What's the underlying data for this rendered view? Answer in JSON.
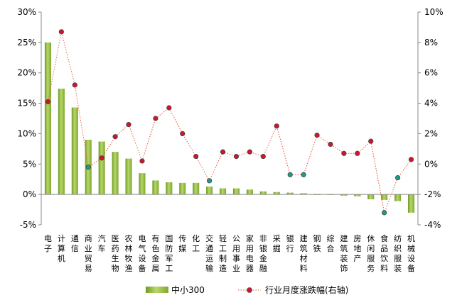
{
  "chart_data": {
    "type": "bar",
    "categories": [
      "电子",
      "计算机",
      "通信",
      "商业贸易",
      "汽车",
      "医药生物",
      "农林牧渔",
      "电气设备",
      "有色金属",
      "国防军工",
      "传媒",
      "化工",
      "交通运输",
      "轻工制造",
      "公用事业",
      "家用电器",
      "非银金融",
      "采掘",
      "银行",
      "建筑材料",
      "钢铁",
      "综合",
      "建筑装饰",
      "房地产",
      "休闲服务",
      "食品饮料",
      "纺织服装",
      "机械设备"
    ],
    "series": [
      {
        "name": "中小300",
        "type": "bar",
        "axis": "left",
        "color": "#8db83a",
        "values": [
          25.0,
          17.4,
          14.3,
          9.0,
          8.7,
          7.0,
          5.9,
          3.5,
          2.3,
          2.0,
          1.9,
          1.9,
          1.3,
          1.0,
          1.0,
          0.8,
          0.5,
          0.4,
          0.3,
          0.2,
          -0.1,
          0.0,
          -0.2,
          -0.3,
          -0.8,
          -0.9,
          -1.1,
          -3.0
        ]
      },
      {
        "name": "行业月度涨跌幅(右轴)",
        "type": "line",
        "axis": "right",
        "color": "#e05a3a",
        "values": [
          4.1,
          8.7,
          5.2,
          -0.2,
          0.4,
          1.8,
          2.6,
          0.2,
          3.0,
          3.7,
          2.0,
          0.5,
          -1.1,
          0.8,
          0.5,
          0.8,
          0.5,
          2.5,
          -0.7,
          -0.7,
          1.9,
          1.3,
          0.7,
          0.7,
          1.5,
          -3.2,
          -0.9,
          0.3
        ]
      }
    ],
    "ylim_left": [
      -5,
      30
    ],
    "ylim_right": [
      -4,
      10
    ],
    "y_ticks_left": [
      "-5%",
      "0%",
      "5%",
      "10%",
      "15%",
      "20%",
      "25%",
      "30%"
    ],
    "y_ticks_right": [
      "-4%",
      "-2%",
      "0%",
      "2%",
      "4%",
      "6%",
      "8%",
      "10%"
    ],
    "grid": false,
    "legend_position": "bottom",
    "marker_fill_positive": "#d0142c",
    "marker_fill_negative": "#1a9e8a"
  }
}
